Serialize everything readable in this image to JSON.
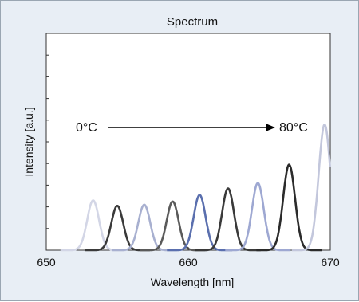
{
  "chart_data": {
    "type": "line",
    "title": "Spectrum",
    "xlabel": "Wavelength [nm]",
    "ylabel": "Intensity [a.u.]",
    "xlim": [
      650,
      670
    ],
    "ylim": [
      0,
      1
    ],
    "x_ticks": [
      "650",
      "660",
      "670"
    ],
    "grid": false,
    "legend": "none",
    "series": [
      {
        "color": "#d3d6e6",
        "points": [
          {
            "x": 653.3,
            "y": 0.23
          }
        ]
      },
      {
        "color": "#3a3a3a",
        "points": [
          {
            "x": 655.0,
            "y": 0.205
          }
        ]
      },
      {
        "color": "#a8b0d0",
        "points": [
          {
            "x": 656.9,
            "y": 0.21
          }
        ]
      },
      {
        "color": "#5a5a5a",
        "points": [
          {
            "x": 658.9,
            "y": 0.225
          }
        ]
      },
      {
        "color": "#5a6fae",
        "points": [
          {
            "x": 660.8,
            "y": 0.255
          }
        ]
      },
      {
        "color": "#3a3a3a",
        "points": [
          {
            "x": 662.8,
            "y": 0.285
          }
        ]
      },
      {
        "color": "#9ea8d2",
        "points": [
          {
            "x": 664.9,
            "y": 0.31
          }
        ]
      },
      {
        "color": "#2b2b2b",
        "points": [
          {
            "x": 667.1,
            "y": 0.395
          }
        ]
      },
      {
        "color": "#c3c7dc",
        "points": [
          {
            "x": 669.6,
            "y": 0.58
          }
        ]
      }
    ],
    "annotations": [
      {
        "text": "0°C"
      },
      {
        "text": "80°C"
      }
    ]
  }
}
